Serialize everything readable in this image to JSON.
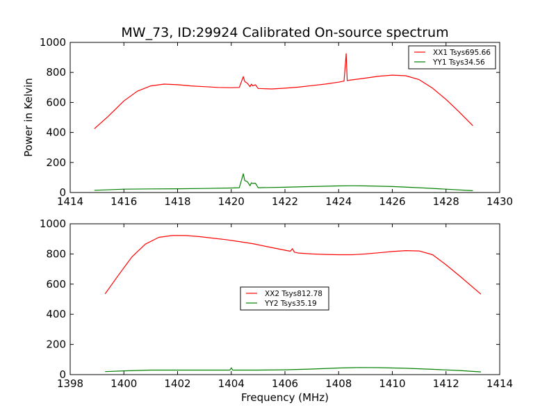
{
  "chart_data": [
    {
      "type": "line",
      "title": "MW_73, ID:29924 Calibrated On-source spectrum",
      "xlabel": "",
      "ylabel": "Power in Kelvin",
      "xlim": [
        1414,
        1430
      ],
      "ylim": [
        0,
        1000
      ],
      "xticks": [
        "1414",
        "1416",
        "1418",
        "1420",
        "1422",
        "1424",
        "1426",
        "1428",
        "1430"
      ],
      "yticks": [
        "0",
        "200",
        "400",
        "600",
        "800",
        "1000"
      ],
      "legend_position": "top-right",
      "series": [
        {
          "name": "XX1 Tsys695.66",
          "color": "#ff0000",
          "x": [
            1414.9,
            1415.4,
            1416.0,
            1416.5,
            1417.0,
            1417.5,
            1418.0,
            1418.5,
            1419.0,
            1419.5,
            1420.0,
            1420.3,
            1420.45,
            1420.5,
            1420.6,
            1420.7,
            1420.75,
            1420.8,
            1420.9,
            1421.0,
            1421.5,
            1422.0,
            1422.5,
            1423.0,
            1423.5,
            1424.0,
            1424.2,
            1424.28,
            1424.32,
            1424.4,
            1425.0,
            1425.5,
            1426.0,
            1426.5,
            1427.0,
            1427.5,
            1428.0,
            1428.5,
            1429.0
          ],
          "y": [
            425,
            505,
            610,
            675,
            710,
            722,
            718,
            710,
            705,
            700,
            698,
            700,
            772,
            740,
            728,
            705,
            722,
            710,
            718,
            693,
            690,
            695,
            702,
            712,
            722,
            735,
            742,
            925,
            745,
            748,
            762,
            775,
            782,
            778,
            752,
            695,
            620,
            535,
            445
          ]
        },
        {
          "name": "YY1 Tsys34.56",
          "color": "#008000",
          "x": [
            1414.9,
            1416.0,
            1417.0,
            1418.0,
            1419.0,
            1420.0,
            1420.3,
            1420.45,
            1420.5,
            1420.6,
            1420.7,
            1420.75,
            1420.8,
            1420.9,
            1421.0,
            1422.0,
            1423.0,
            1424.0,
            1424.5,
            1425.0,
            1426.0,
            1427.0,
            1428.0,
            1429.0
          ],
          "y": [
            15,
            22,
            24,
            25,
            27,
            30,
            32,
            125,
            80,
            72,
            45,
            65,
            60,
            62,
            32,
            35,
            40,
            44,
            45,
            44,
            40,
            32,
            22,
            12
          ]
        }
      ]
    },
    {
      "type": "line",
      "title": "",
      "xlabel": "Frequency (MHz)",
      "ylabel": "",
      "xlim": [
        1398,
        1414
      ],
      "ylim": [
        0,
        1000
      ],
      "xticks": [
        "1398",
        "1400",
        "1402",
        "1404",
        "1406",
        "1408",
        "1410",
        "1412",
        "1414"
      ],
      "yticks": [
        "0",
        "200",
        "400",
        "600",
        "800",
        "1000"
      ],
      "legend_position": "center",
      "series": [
        {
          "name": "XX2 Tsys812.78",
          "color": "#ff0000",
          "x": [
            1399.3,
            1399.8,
            1400.3,
            1400.8,
            1401.3,
            1401.8,
            1402.3,
            1402.8,
            1403.3,
            1403.8,
            1404.3,
            1404.8,
            1405.3,
            1405.8,
            1406.2,
            1406.28,
            1406.35,
            1406.5,
            1407.0,
            1407.5,
            1408.0,
            1408.5,
            1409.0,
            1409.5,
            1410.0,
            1410.5,
            1411.0,
            1411.5,
            1412.0,
            1412.5,
            1413.3
          ],
          "y": [
            535,
            660,
            780,
            865,
            910,
            922,
            922,
            915,
            905,
            895,
            882,
            868,
            850,
            832,
            818,
            835,
            812,
            806,
            800,
            797,
            795,
            795,
            800,
            808,
            816,
            822,
            820,
            795,
            728,
            655,
            533
          ]
        },
        {
          "name": "YY2 Tsys35.19",
          "color": "#008000",
          "x": [
            1399.3,
            1400.0,
            1401.0,
            1402.0,
            1403.0,
            1403.95,
            1404.0,
            1404.05,
            1405.0,
            1406.0,
            1407.0,
            1408.0,
            1408.8,
            1409.5,
            1410.5,
            1411.5,
            1412.5,
            1413.3
          ],
          "y": [
            20,
            25,
            30,
            30,
            30,
            30,
            45,
            30,
            30,
            32,
            37,
            44,
            47,
            46,
            42,
            35,
            27,
            18
          ]
        }
      ]
    }
  ]
}
